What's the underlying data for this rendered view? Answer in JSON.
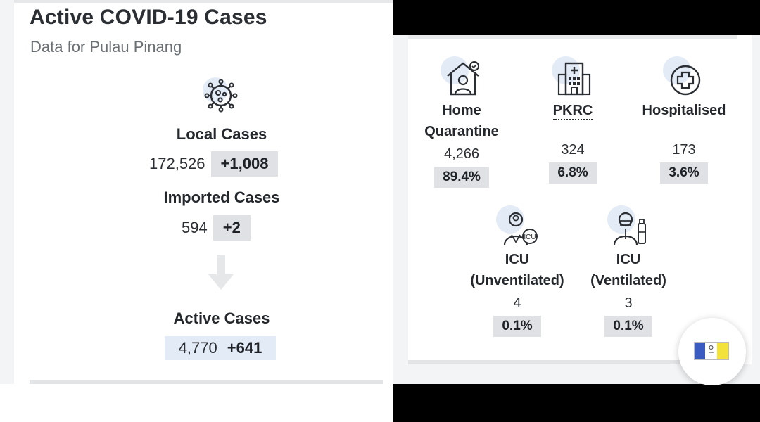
{
  "left": {
    "title": "Active COVID-19 Cases",
    "subtitle": "Data for Pulau Pinang",
    "virus_icon": "virus-icon",
    "local": {
      "label": "Local Cases",
      "value": "172,526",
      "delta": "+1,008"
    },
    "imported": {
      "label": "Imported Cases",
      "value": "594",
      "delta": "+2"
    },
    "arrow_icon": "arrow-down-icon",
    "active": {
      "label": "Active Cases",
      "value": "4,770",
      "delta": "+641"
    }
  },
  "right": {
    "home": {
      "name_line1": "Home",
      "name_line2": "Quarantine",
      "count": "4,266",
      "pct": "89.4%",
      "icon": "home-quarantine-icon"
    },
    "pkrc": {
      "name": "PKRC",
      "count": "324",
      "pct": "6.8%",
      "icon": "hospital-building-icon"
    },
    "hospitalised": {
      "name": "Hospitalised",
      "count": "173",
      "pct": "3.6%",
      "icon": "medical-cross-icon"
    },
    "icu_unvent": {
      "name_line1": "ICU",
      "name_line2": "(Unventilated)",
      "count": "4",
      "pct": "0.1%",
      "icon": "icu-doctor-icon"
    },
    "icu_vent": {
      "name_line1": "ICU",
      "name_line2": "(Ventilated)",
      "count": "3",
      "pct": "0.1%",
      "icon": "ventilator-patient-icon"
    }
  },
  "fab": {
    "icon": "penang-flag-icon"
  },
  "colors": {
    "delta_bg": "#dfe1e4",
    "active_bg": "#e3ebf7",
    "halo": "#e3ebf7"
  }
}
